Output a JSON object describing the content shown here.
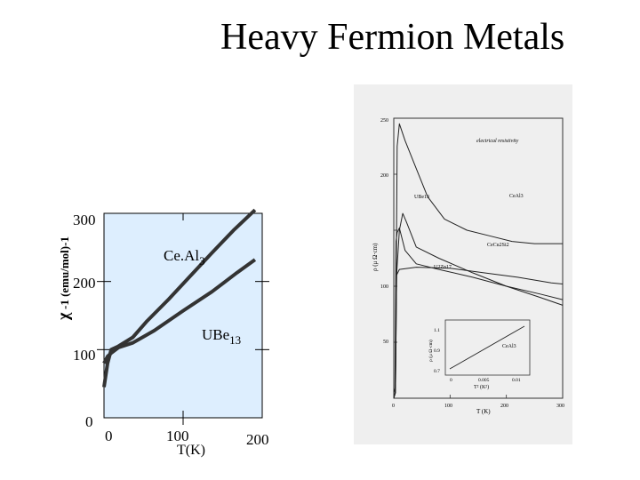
{
  "slide": {
    "title": "Heavy Fermion Metals"
  },
  "chart_data": [
    {
      "type": "line",
      "title": "",
      "xlabel": "T(K)",
      "ylabel_symbol": "χ",
      "ylabel_text": "-1 (emu/mol)-1",
      "xlim": [
        -10,
        210
      ],
      "ylim": [
        0,
        300
      ],
      "x_ticks": [
        "0",
        "100",
        "200"
      ],
      "y_ticks": [
        "0",
        "100",
        "200",
        "300"
      ],
      "grid": false,
      "background": "#ddeefe",
      "annotations": [
        {
          "text": "Ce.Al",
          "sub": "3"
        },
        {
          "text": "UBe",
          "sub": "13"
        }
      ],
      "series": [
        {
          "name": "CeAl3",
          "points": [
            [
              -10,
              45
            ],
            [
              -5,
              80
            ],
            [
              0,
              100
            ],
            [
              10,
              105
            ],
            [
              30,
              118
            ],
            [
              50,
              142
            ],
            [
              80,
              174
            ],
            [
              110,
              208
            ],
            [
              140,
              242
            ],
            [
              170,
              275
            ],
            [
              200,
              310
            ]
          ]
        },
        {
          "name": "UBe13",
          "points": [
            [
              -10,
              80
            ],
            [
              -5,
              90
            ],
            [
              0,
              95
            ],
            [
              10,
              103
            ],
            [
              30,
              110
            ],
            [
              60,
              128
            ],
            [
              100,
              157
            ],
            [
              140,
              185
            ],
            [
              175,
              213
            ],
            [
              200,
              232
            ]
          ]
        }
      ]
    },
    {
      "type": "line",
      "title": "",
      "xlabel": "T (K)",
      "ylabel": "ρ (μ Ω·cm)",
      "xlim": [
        0,
        300
      ],
      "ylim": [
        0,
        250
      ],
      "x_ticks": [
        "0",
        "100",
        "200",
        "300"
      ],
      "y_ticks": [
        "50",
        "100",
        "200",
        "250"
      ],
      "annotations": [
        "electrical resistivity",
        "UBe13",
        "CeAl3",
        "CeCu2Si2",
        "U2Zn17"
      ],
      "inset": {
        "xlabel": "T² (K²)",
        "ylabel": "ρ (μ Ω·cm)",
        "x_ticks": [
          "0",
          "0.005",
          "0.01"
        ],
        "y_ticks": [
          "0.7",
          "0.9",
          "1.1"
        ],
        "label": "CeAl3"
      },
      "series": [
        {
          "name": "CeAl3",
          "points": [
            [
              0,
              5
            ],
            [
              3,
              10
            ],
            [
              6,
              225
            ],
            [
              10,
              245
            ],
            [
              20,
              230
            ],
            [
              40,
              205
            ],
            [
              60,
              180
            ],
            [
              90,
              160
            ],
            [
              130,
              150
            ],
            [
              170,
              145
            ],
            [
              210,
              140
            ],
            [
              250,
              138
            ],
            [
              300,
              138
            ]
          ]
        },
        {
          "name": "UBe13",
          "points": [
            [
              0,
              0
            ],
            [
              2,
              5
            ],
            [
              4,
              140
            ],
            [
              6,
              148
            ],
            [
              10,
              152
            ],
            [
              20,
              132
            ],
            [
              40,
              120
            ],
            [
              80,
              115
            ],
            [
              140,
              108
            ],
            [
              200,
              100
            ],
            [
              260,
              93
            ],
            [
              300,
              88
            ]
          ]
        },
        {
          "name": "CeCu2Si2",
          "points": [
            [
              0,
              0
            ],
            [
              3,
              5
            ],
            [
              5,
              110
            ],
            [
              10,
              150
            ],
            [
              16,
              165
            ],
            [
              22,
              158
            ],
            [
              40,
              135
            ],
            [
              80,
              125
            ],
            [
              140,
              112
            ],
            [
              200,
              100
            ],
            [
              260,
              90
            ],
            [
              300,
              83
            ]
          ]
        },
        {
          "name": "U2Zn17",
          "points": [
            [
              0,
              0
            ],
            [
              3,
              5
            ],
            [
              5,
              110
            ],
            [
              10,
              115
            ],
            [
              40,
              117
            ],
            [
              100,
              116
            ],
            [
              160,
              112
            ],
            [
              220,
              108
            ],
            [
              280,
              103
            ],
            [
              300,
              102
            ]
          ]
        }
      ]
    }
  ]
}
